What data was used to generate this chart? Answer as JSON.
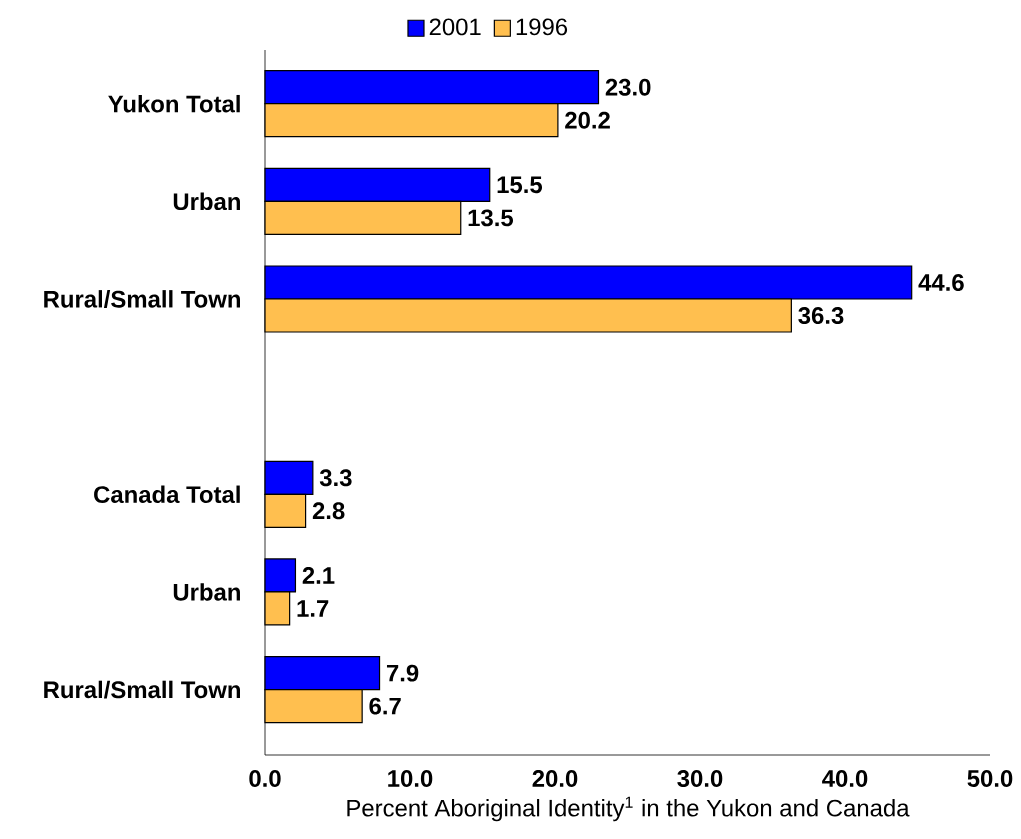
{
  "chart_data": {
    "type": "bar",
    "orientation": "horizontal",
    "xlabel": "Percent Aboriginal Identity$^{1}$ in the Yukon and Canada",
    "categories": [
      "Yukon Total",
      "Urban",
      "Rural/Small Town",
      null,
      "Canada Total",
      "Urban",
      "Rural/Small Town"
    ],
    "series": [
      {
        "name": "2001",
        "color": "#0000ff",
        "values": [
          23.0,
          15.5,
          44.6,
          null,
          3.3,
          2.1,
          7.9
        ],
        "value_labels": [
          "23.0",
          "15.5",
          "44.6",
          null,
          "3.3",
          "2.1",
          "7.9"
        ]
      },
      {
        "name": "1996",
        "color": "#ffbf4f",
        "values": [
          20.2,
          13.5,
          36.3,
          null,
          2.8,
          1.7,
          6.7
        ],
        "value_labels": [
          "20.2",
          "13.5",
          "36.3",
          null,
          "2.8",
          "1.7",
          "6.7"
        ]
      }
    ],
    "xlim": [
      0,
      50
    ],
    "xticks": [
      {
        "value": 0,
        "label": "0.0"
      },
      {
        "value": 10,
        "label": "10.0"
      },
      {
        "value": 20,
        "label": "20.0"
      },
      {
        "value": 30,
        "label": "30.0"
      },
      {
        "value": 40,
        "label": "40.0"
      },
      {
        "value": 50,
        "label": "50.0"
      }
    ],
    "legend": "top",
    "grid": false
  }
}
